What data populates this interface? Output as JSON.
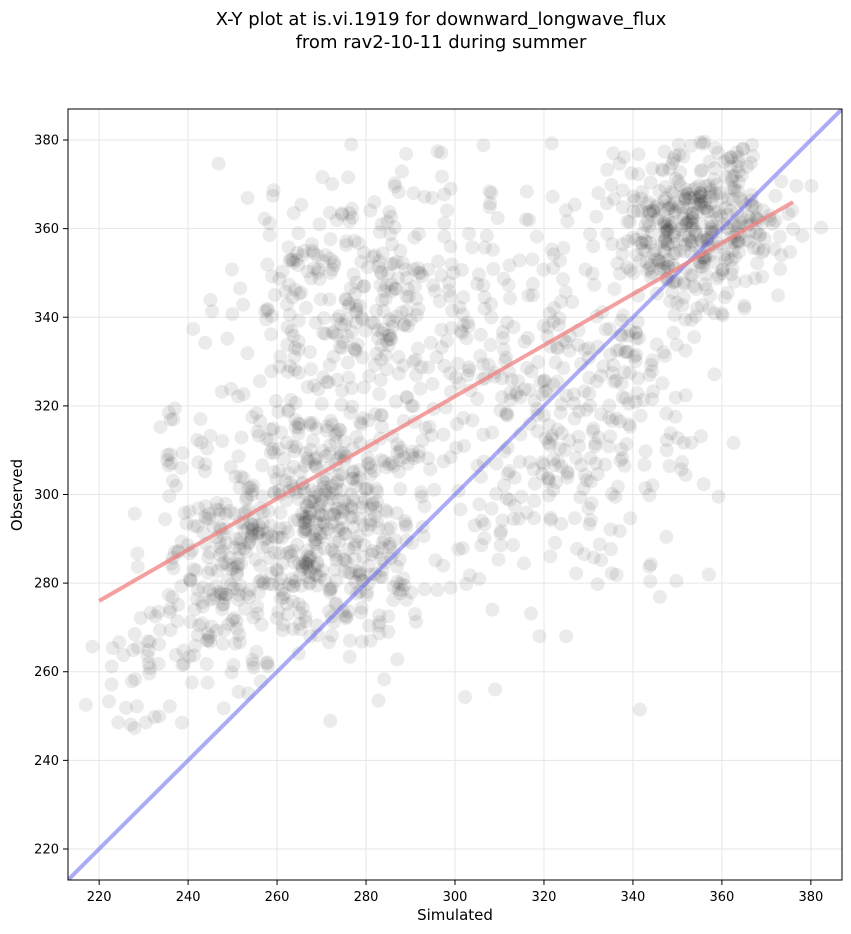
{
  "chart_data": {
    "type": "scatter",
    "title_lines": [
      "X-Y plot at is.vi.1919 for downward_longwave_flux",
      "from rav2-10-11 during summer"
    ],
    "xlabel": "Simulated",
    "ylabel": "Observed",
    "xlim": [
      213,
      387
    ],
    "ylim": [
      213,
      387
    ],
    "xticks": [
      220,
      240,
      260,
      280,
      300,
      320,
      340,
      360,
      380
    ],
    "yticks": [
      220,
      240,
      260,
      280,
      300,
      320,
      340,
      360,
      380
    ],
    "grid": true,
    "colors": {
      "points": "#000000",
      "regression": "#f08080",
      "identity": "#6666ee"
    },
    "regression_line": {
      "x": [
        220,
        376
      ],
      "y": [
        276,
        366
      ]
    },
    "identity_line": {
      "x": [
        213,
        387
      ],
      "y": [
        213,
        387
      ]
    },
    "clusters": [
      {
        "cx": 270,
        "cy": 295,
        "sx": 12,
        "sy": 15,
        "n": 520
      },
      {
        "cx": 248,
        "cy": 280,
        "sx": 7,
        "sy": 12,
        "n": 160
      },
      {
        "cx": 230,
        "cy": 262,
        "sx": 5,
        "sy": 14,
        "n": 40
      },
      {
        "cx": 275,
        "cy": 345,
        "sx": 14,
        "sy": 13,
        "n": 230
      },
      {
        "cx": 300,
        "cy": 335,
        "sx": 14,
        "sy": 20,
        "n": 180
      },
      {
        "cx": 333,
        "cy": 325,
        "sx": 12,
        "sy": 22,
        "n": 240
      },
      {
        "cx": 355,
        "cy": 360,
        "sx": 9,
        "sy": 9,
        "n": 380
      },
      {
        "cx": 315,
        "cy": 300,
        "sx": 14,
        "sy": 15,
        "n": 80
      },
      {
        "cx": 236,
        "cy": 310,
        "sx": 2,
        "sy": 8,
        "n": 14
      }
    ],
    "outliers": [
      [
        309,
        256
      ],
      [
        325,
        268
      ],
      [
        319,
        268
      ],
      [
        285,
        269
      ],
      [
        291,
        273
      ]
    ]
  }
}
